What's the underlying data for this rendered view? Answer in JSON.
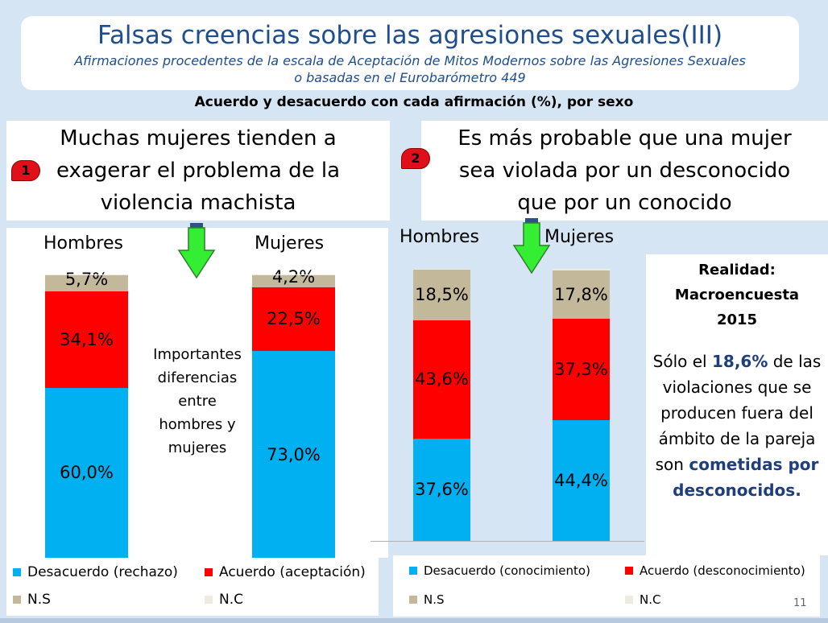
{
  "header": {
    "title": "Falsas creencias sobre las agresiones sexuales(III)",
    "subtitle_line1": "Afirmaciones procedentes de la escala de Aceptación de Mitos Modernos sobre las Agresiones Sexuales",
    "subtitle_line2": "o basadas en el Eurobarómetro 449",
    "heading": "Acuerdo y desacuerdo con cada afirmación (%), por sexo"
  },
  "statements": [
    {
      "number": "1",
      "lines": [
        "Muchas mujeres tienden a",
        "exagerar el problema de la",
        "violencia machista"
      ]
    },
    {
      "number": "2",
      "lines": [
        "Es más probable que una mujer",
        "sea violada por un desconocido",
        "que por un conocido"
      ]
    }
  ],
  "note": {
    "lines": [
      "Importantes",
      "diferencias",
      "entre",
      "hombres y",
      "mujeres"
    ]
  },
  "reality": {
    "title_lines": [
      "Realidad:",
      "Macroencuesta",
      "2015"
    ],
    "text_before": "Sólo el ",
    "highlight": "18,6%",
    "text_mid": " de las violaciones que se producen fuera del ámbito de la pareja son ",
    "text_bold": "cometidas por desconocidos."
  },
  "page_number": "11",
  "colors": {
    "desacuerdo": "#00b0f0",
    "acuerdo": "#ff0000",
    "ns": "#c4b89a",
    "nc": "#eeece1",
    "title": "#1f4e8c",
    "arrow": "#33ee33"
  },
  "chart_data": [
    {
      "type": "bar",
      "stacked": true,
      "categories": [
        "Hombres",
        "Mujeres"
      ],
      "series": [
        {
          "name": "Desacuerdo (rechazo)",
          "values": [
            60.0,
            73.0
          ],
          "labels": [
            "60,0%",
            "73,0%"
          ]
        },
        {
          "name": "Acuerdo (aceptación)",
          "values": [
            34.1,
            22.5
          ],
          "labels": [
            "34,1%",
            "22,5%"
          ]
        },
        {
          "name": "N.S",
          "values": [
            5.7,
            4.2
          ],
          "labels": [
            "5,7%",
            "4,2%"
          ]
        },
        {
          "name": "N.C",
          "values": [
            0.2,
            0.3
          ],
          "labels": []
        }
      ],
      "legend": "bottom"
    },
    {
      "type": "bar",
      "stacked": true,
      "categories": [
        "Hombres",
        "Mujeres"
      ],
      "series": [
        {
          "name": "Desacuerdo (conocimiento)",
          "values": [
            37.6,
            44.4
          ],
          "labels": [
            "37,6%",
            "44,4%"
          ]
        },
        {
          "name": "Acuerdo (desconocimiento)",
          "values": [
            43.6,
            37.3
          ],
          "labels": [
            "43,6%",
            "37,3%"
          ]
        },
        {
          "name": "N.S",
          "values": [
            18.5,
            17.8
          ],
          "labels": [
            "18,5%",
            "17,8%"
          ]
        },
        {
          "name": "N.C",
          "values": [
            0.3,
            0.5
          ],
          "labels": []
        }
      ],
      "legend": "bottom"
    }
  ]
}
